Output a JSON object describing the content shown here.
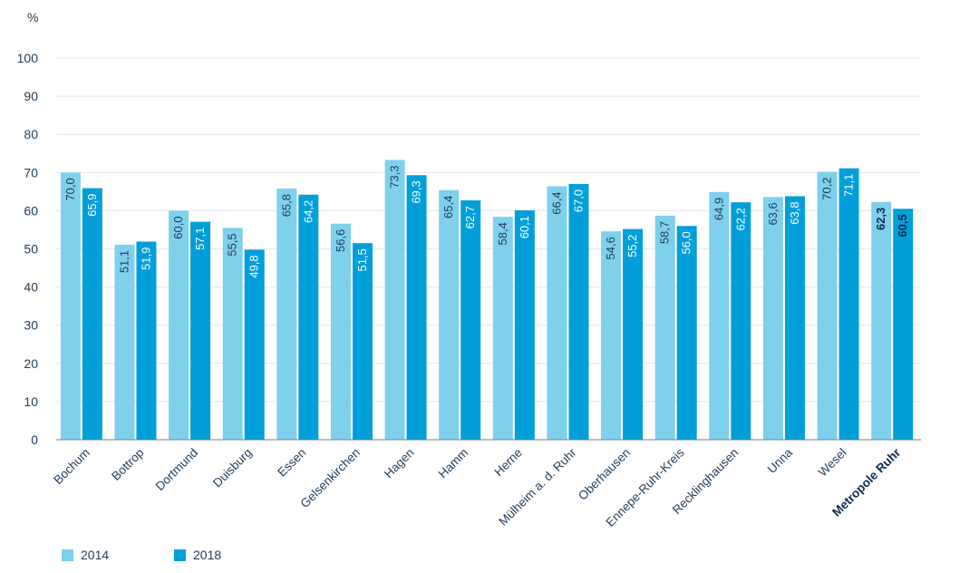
{
  "chart_data": {
    "type": "bar",
    "unit": "%",
    "ylim": [
      0,
      100
    ],
    "yticks": [
      0,
      10,
      20,
      30,
      40,
      50,
      60,
      70,
      80,
      90,
      100
    ],
    "grid": true,
    "legend_position": "bottom-left",
    "categories": [
      "Bochum",
      "Bottrop",
      "Dortmund",
      "Duisburg",
      "Essen",
      "Gelsenkirchen",
      "Hagen",
      "Hamm",
      "Herne",
      "Mülheim a. d. Ruhr",
      "Oberhausen",
      "Ennepe-Ruhr-Kreis",
      "Recklinghausen",
      "Unna",
      "Wesel",
      "Metropole Ruhr"
    ],
    "bold_categories": [
      "Metropole Ruhr"
    ],
    "series": [
      {
        "name": "2014",
        "color": "#7fd0ec",
        "values": [
          70.0,
          51.1,
          60.0,
          55.5,
          65.8,
          56.6,
          73.3,
          65.4,
          58.4,
          66.4,
          54.6,
          58.7,
          64.9,
          63.6,
          70.2,
          62.3
        ],
        "labels": [
          "70,0",
          "51,1",
          "60,0",
          "55,5",
          "65,8",
          "56,6",
          "73,3",
          "65,4",
          "58,4",
          "66,4",
          "54,6",
          "58,7",
          "64,9",
          "63,6",
          "70,2",
          "62,3"
        ]
      },
      {
        "name": "2018",
        "color": "#009fda",
        "values": [
          65.9,
          51.9,
          57.1,
          49.8,
          64.2,
          51.5,
          69.3,
          62.7,
          60.1,
          67.0,
          55.2,
          56.0,
          62.2,
          63.8,
          71.1,
          60.5
        ],
        "labels": [
          "65,9",
          "51,9",
          "57,1",
          "49,8",
          "64,2",
          "51,5",
          "69,3",
          "62,7",
          "60,1",
          "67,0",
          "55,2",
          "56,0",
          "62,2",
          "63,8",
          "71,1",
          "60,5"
        ]
      }
    ]
  },
  "legend": {
    "items": [
      {
        "label": "2014",
        "color": "#7fd0ec"
      },
      {
        "label": "2018",
        "color": "#009fda"
      }
    ]
  }
}
